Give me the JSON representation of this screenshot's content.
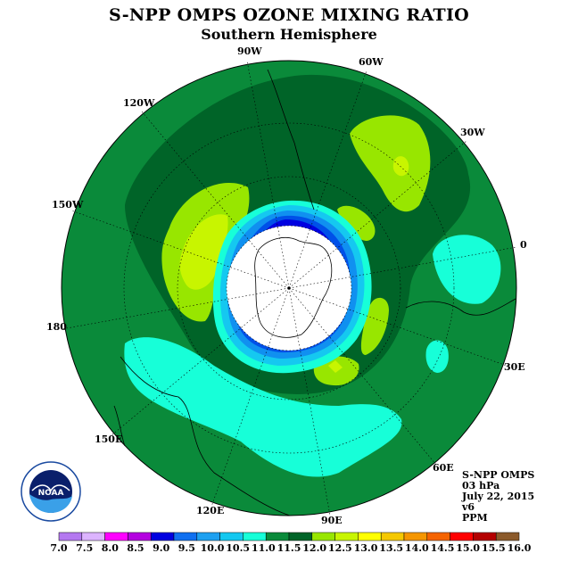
{
  "header": {
    "title": "S-NPP OMPS OZONE MIXING RATIO",
    "subtitle": "Southern Hemisphere"
  },
  "map": {
    "projection": "south-polar-stereographic",
    "longitude_labels": [
      "90W",
      "60W",
      "30W",
      "0",
      "30E",
      "60E",
      "90E",
      "120E",
      "150E",
      "180",
      "150W",
      "120W"
    ],
    "colors": {
      "pole_mask": "#ffffff",
      "level_11_0_11_5": "#0a8a3a",
      "level_11_5_12_0": "#006428",
      "level_12_0_12_5": "#98e600",
      "level_12_5_13_0": "#c8f500",
      "level_10_5_11_0": "#17ffd8",
      "level_10_0_10_5": "#15c8f0",
      "level_9_5_10_0": "#1090f0",
      "level_9_0_9_5": "#0050e8",
      "level_8_5_9_0": "#0000e0"
    }
  },
  "info_box": {
    "lines": [
      "S-NPP OMPS",
      "03 hPa",
      "July 22, 2015",
      "v6",
      "PPM"
    ]
  },
  "colorbar": {
    "ticks": [
      "7.0",
      "7.5",
      "8.0",
      "8.5",
      "9.0",
      "9.5",
      "10.0",
      "10.5",
      "11.0",
      "11.5",
      "12.0",
      "12.5",
      "13.0",
      "13.5",
      "14.0",
      "14.5",
      "15.0",
      "15.5",
      "16.0"
    ],
    "colors": [
      "#b478f0",
      "#dcb4ff",
      "#ff00ff",
      "#b400e0",
      "#0000e0",
      "#1070f0",
      "#1ea0f0",
      "#14c8f0",
      "#17ffd8",
      "#0a8a3a",
      "#006428",
      "#98e600",
      "#c8f500",
      "#ffff00",
      "#f5c800",
      "#f59600",
      "#f56400",
      "#ff0000",
      "#b40000",
      "#8b5a2b"
    ]
  },
  "logo": {
    "text": "NOAA",
    "ring_text": "NATIONAL OCEANIC AND ATMOSPHERIC ADMINISTRATION"
  }
}
